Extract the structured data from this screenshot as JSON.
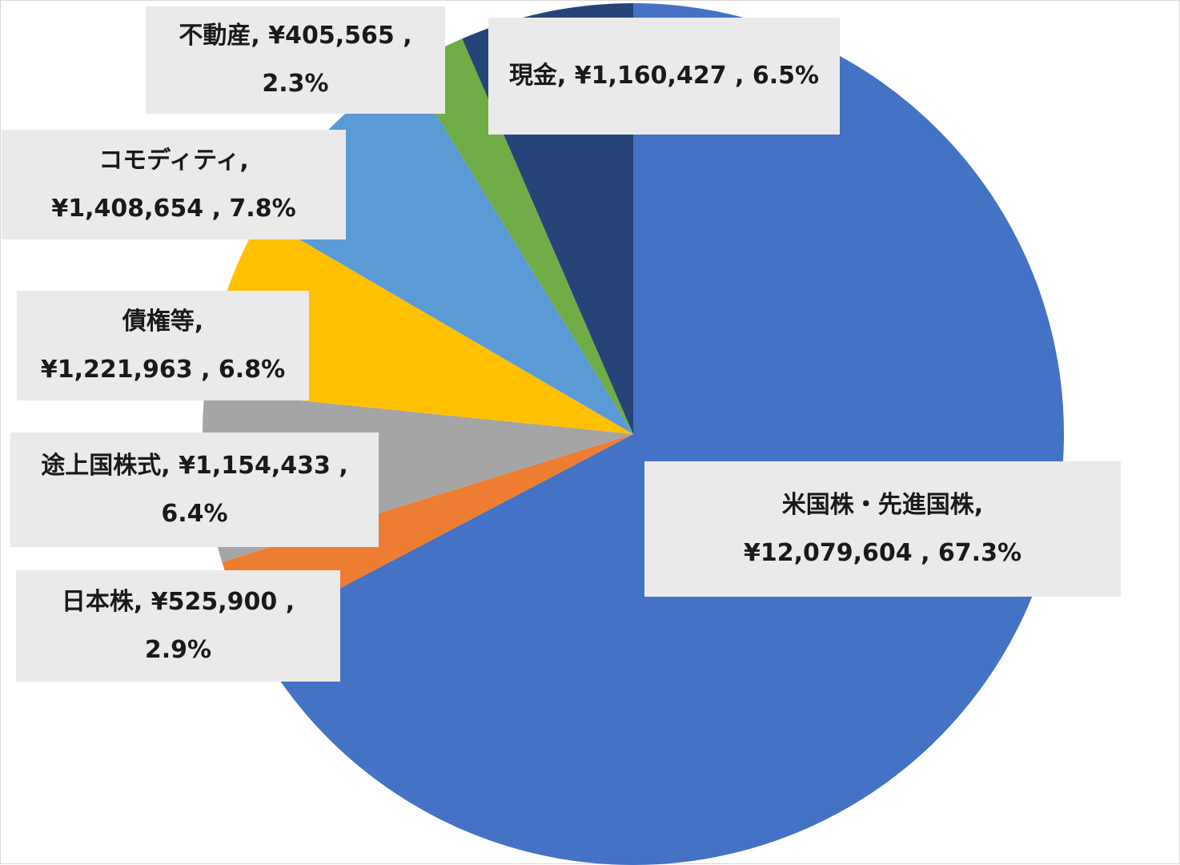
{
  "chart_data": {
    "type": "pie",
    "title": "",
    "start_angle_deg": 0,
    "direction": "clockwise",
    "slices": [
      {
        "name": "米国株・先進国株",
        "amount": "¥12,079,604",
        "percent": 67.3,
        "color": "#4472c4",
        "label_lines": [
          "米国株・先進国株,",
          "¥12,079,604 , 67.3%"
        ]
      },
      {
        "name": "日本株",
        "amount": "¥525,900",
        "percent": 2.9,
        "color": "#ed7d31",
        "label_lines": [
          "日本株, ¥525,900 ,",
          "2.9%"
        ]
      },
      {
        "name": "途上国株式",
        "amount": "¥1,154,433",
        "percent": 6.4,
        "color": "#a5a5a5",
        "label_lines": [
          "途上国株式, ¥1,154,433 ,",
          "6.4%"
        ]
      },
      {
        "name": "債権等",
        "amount": "¥1,221,963",
        "percent": 6.8,
        "color": "#ffc000",
        "label_lines": [
          "債権等,",
          "¥1,221,963 , 6.8%"
        ]
      },
      {
        "name": "コモディティ",
        "amount": "¥1,408,654",
        "percent": 7.8,
        "color": "#5b9bd5",
        "label_lines": [
          "コモディティ,",
          "¥1,408,654 , 7.8%"
        ]
      },
      {
        "name": "不動産",
        "amount": "¥405,565",
        "percent": 2.3,
        "color": "#70ad47",
        "label_lines": [
          "不動産, ¥405,565 ,",
          "2.3%"
        ]
      },
      {
        "name": "現金",
        "amount": "¥1,160,427",
        "percent": 6.5,
        "color": "#264478",
        "label_lines": [
          "現金, ¥1,160,427 , 6.5%"
        ]
      }
    ]
  }
}
